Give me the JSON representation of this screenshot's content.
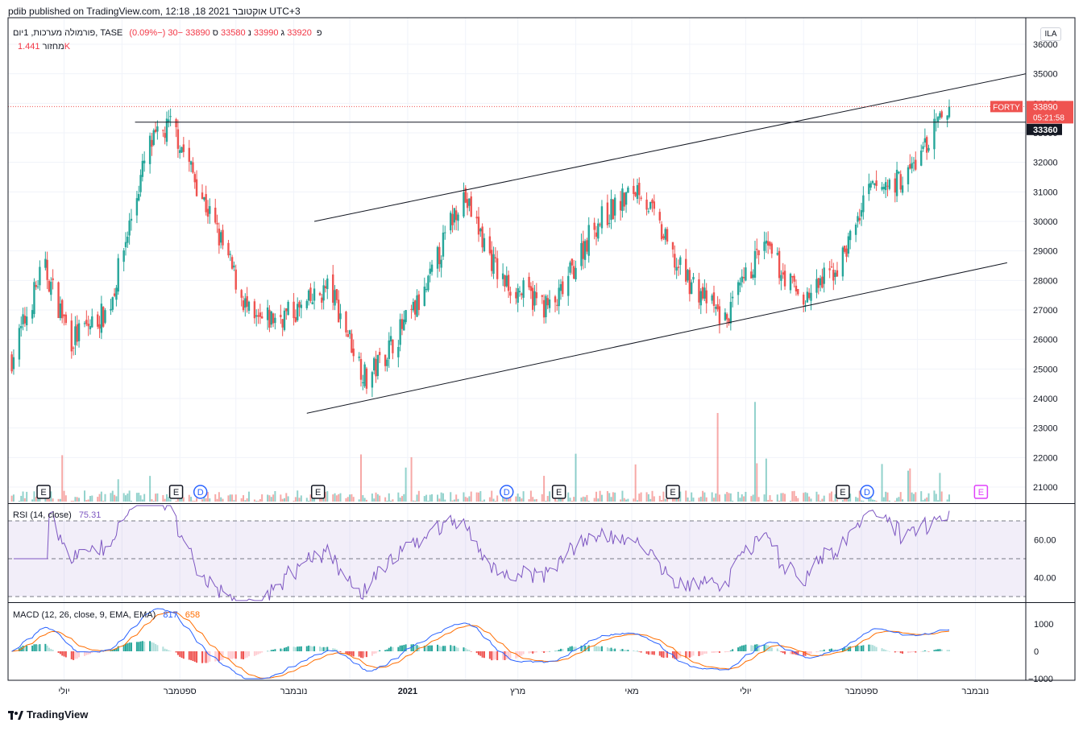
{
  "header": {
    "published_line": "pdib published on TradingView.com, 12:18 ,18 אוקטובר 2021 UTC+3"
  },
  "legend": {
    "symbol_line": "פורמולה מערכות, 1יום, TASE",
    "open_prefix": "פ",
    "open_value": "33920",
    "high_prefix": "ג",
    "high_value": "33990",
    "low_prefix": "נ",
    "low_value": "33580",
    "close_prefix": "ס",
    "close_value": "33890",
    "change": "−30 (−0.09%)",
    "volume_label": "מחזור",
    "volume_value": "1.441K",
    "rsi_label": "RSI (14, close)",
    "rsi_value": "75.31",
    "macd_label": "MACD (12, 26, close, 9, EMA, EMA)",
    "macd_value1": "817",
    "macd_value2": "658"
  },
  "currency_badge": "ILA",
  "price_tags": {
    "symbol": "FORTY",
    "last_price": "33890",
    "countdown": "05:21:58",
    "level": "33360"
  },
  "event_markers": [
    "E",
    "E",
    "D",
    "E",
    "D",
    "E",
    "E",
    "E",
    "D",
    "E"
  ],
  "footer": {
    "brand": "TradingView"
  },
  "colors": {
    "up": "#26a69a",
    "down": "#ef5350",
    "rsi_line": "#7e57c2",
    "macd_line": "#2962ff",
    "signal_line": "#ff6d00",
    "accent_red": "#f23645"
  },
  "chart_data": [
    {
      "type": "candlestick",
      "title": "פורמולה מערכות, 1יום, TASE",
      "ylim": [
        20500,
        36000
      ],
      "y_ticks": [
        21000,
        22000,
        23000,
        24000,
        25000,
        26000,
        27000,
        28000,
        29000,
        30000,
        31000,
        32000,
        33000,
        34000,
        35000,
        36000
      ],
      "x_tick_labels": [
        "יולי",
        "ספטמבר",
        "נובמבר",
        "2021",
        "מרץ",
        "מאי",
        "יולי",
        "ספטמבר",
        "נובמבר"
      ],
      "approx_close_path": [
        {
          "x": "2020-06",
          "y": 25000
        },
        {
          "x": "2020-06-20",
          "y": 28500
        },
        {
          "x": "2020-07-05",
          "y": 26000
        },
        {
          "x": "2020-07-25",
          "y": 27000
        },
        {
          "x": "2020-08-15",
          "y": 32500
        },
        {
          "x": "2020-08-28",
          "y": 33300
        },
        {
          "x": "2020-09-25",
          "y": 29000
        },
        {
          "x": "2020-10-10",
          "y": 26500
        },
        {
          "x": "2020-11-05",
          "y": 27000
        },
        {
          "x": "2020-11-20",
          "y": 27800
        },
        {
          "x": "2020-12-10",
          "y": 24600
        },
        {
          "x": "2021-01-10",
          "y": 27500
        },
        {
          "x": "2021-01-30",
          "y": 31000
        },
        {
          "x": "2021-02-20",
          "y": 28000
        },
        {
          "x": "2021-03-20",
          "y": 27000
        },
        {
          "x": "2021-04-10",
          "y": 29800
        },
        {
          "x": "2021-05-05",
          "y": 31200
        },
        {
          "x": "2021-05-25",
          "y": 28500
        },
        {
          "x": "2021-06-20",
          "y": 26600
        },
        {
          "x": "2021-07-10",
          "y": 29200
        },
        {
          "x": "2021-08-01",
          "y": 27300
        },
        {
          "x": "2021-08-20",
          "y": 28500
        },
        {
          "x": "2021-09-05",
          "y": 31000
        },
        {
          "x": "2021-09-25",
          "y": 31500
        },
        {
          "x": "2021-10-18",
          "y": 33890
        }
      ],
      "last_close": 33890,
      "horizontal_level": 33360
    },
    {
      "type": "bar",
      "title": "מחזור",
      "last_value": "1.441K"
    },
    {
      "type": "line",
      "title": "RSI (14, close)",
      "ylim": [
        25,
        85
      ],
      "y_ticks": [
        40,
        60
      ],
      "bands": [
        30,
        50,
        70
      ],
      "last_value": 75.31
    },
    {
      "type": "line",
      "title": "MACD (12, 26, close, 9, EMA, EMA)",
      "ylim": [
        -1000,
        1000
      ],
      "y_ticks": [
        -1000,
        0,
        1000
      ],
      "series": [
        {
          "name": "MACD",
          "last_value": 817
        },
        {
          "name": "Signal",
          "last_value": 658
        }
      ]
    }
  ]
}
